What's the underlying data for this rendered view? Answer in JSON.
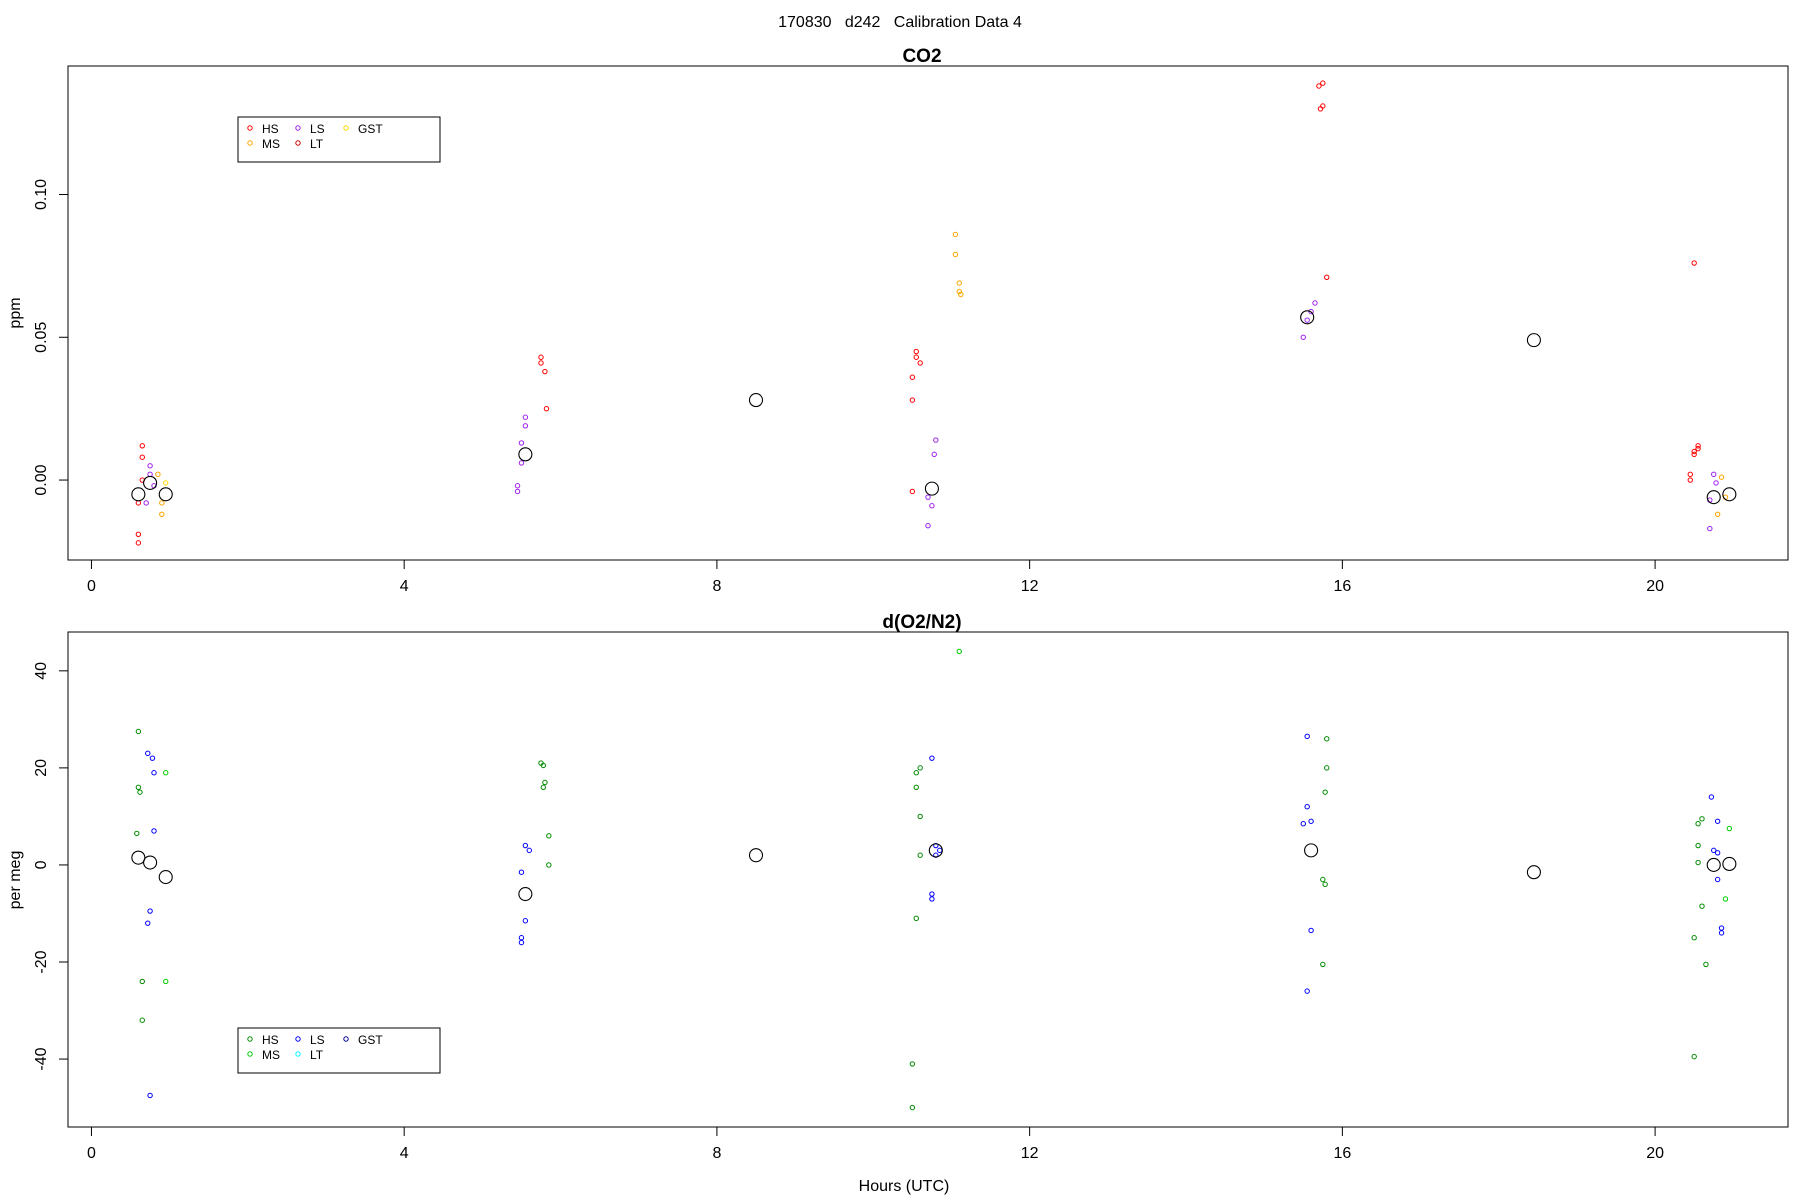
{
  "figure_title": "170830   d242   Calibration Data 4",
  "chart_data": [
    {
      "type": "scatter",
      "title": "CO2",
      "xlabel": "",
      "ylabel": "ppm",
      "xlim": [
        -0.3,
        21.7
      ],
      "ylim": [
        -0.028,
        0.145
      ],
      "xticks": [
        0,
        4,
        8,
        12,
        16,
        20
      ],
      "yticks": [
        0.0,
        0.05,
        0.1
      ],
      "ytick_labels": [
        "0.00",
        "0.05",
        "0.10"
      ],
      "legend": {
        "position": "top-left",
        "entries": [
          {
            "label": "HS",
            "color": "#ff0000"
          },
          {
            "label": "MS",
            "color": "#ffa500"
          },
          {
            "label": "LS",
            "color": "#a020f0"
          },
          {
            "label": "LT",
            "color": "#cd0000"
          },
          {
            "label": "GST",
            "color": "#ffd700"
          }
        ]
      },
      "series": [
        {
          "name": "HS",
          "color": "#ff0000",
          "points": [
            [
              0.6,
              -0.022
            ],
            [
              0.6,
              -0.019
            ],
            [
              0.6,
              -0.008
            ],
            [
              0.65,
              0.0
            ],
            [
              0.65,
              0.008
            ],
            [
              0.65,
              0.012
            ],
            [
              5.75,
              0.043
            ],
            [
              5.75,
              0.041
            ],
            [
              5.8,
              0.038
            ],
            [
              5.82,
              0.025
            ],
            [
              10.55,
              0.045
            ],
            [
              10.55,
              0.043
            ],
            [
              10.6,
              0.041
            ],
            [
              10.5,
              0.036
            ],
            [
              10.5,
              0.028
            ],
            [
              10.5,
              -0.004
            ],
            [
              15.7,
              0.138
            ],
            [
              15.75,
              0.139
            ],
            [
              15.75,
              0.131
            ],
            [
              15.72,
              0.13
            ],
            [
              15.8,
              0.071
            ],
            [
              20.5,
              0.076
            ],
            [
              20.55,
              0.012
            ],
            [
              20.55,
              0.011
            ],
            [
              20.5,
              0.01
            ],
            [
              20.5,
              0.009
            ],
            [
              20.45,
              0.002
            ],
            [
              20.45,
              0.0
            ]
          ]
        },
        {
          "name": "MS",
          "color": "#ffa500",
          "points": [
            [
              0.85,
              0.002
            ],
            [
              0.9,
              -0.008
            ],
            [
              0.9,
              -0.012
            ],
            [
              11.05,
              0.086
            ],
            [
              11.05,
              0.079
            ],
            [
              11.1,
              0.069
            ],
            [
              11.1,
              0.066
            ],
            [
              11.12,
              0.065
            ],
            [
              20.85,
              0.001
            ],
            [
              20.8,
              -0.012
            ],
            [
              20.9,
              -0.006
            ]
          ]
        },
        {
          "name": "LS",
          "color": "#a020f0",
          "points": [
            [
              0.7,
              -0.008
            ],
            [
              0.75,
              0.005
            ],
            [
              0.75,
              0.002
            ],
            [
              0.8,
              -0.002
            ],
            [
              5.55,
              0.022
            ],
            [
              5.55,
              0.019
            ],
            [
              5.5,
              0.013
            ],
            [
              5.5,
              0.006
            ],
            [
              5.45,
              -0.002
            ],
            [
              5.45,
              -0.004
            ],
            [
              10.8,
              0.014
            ],
            [
              10.78,
              0.009
            ],
            [
              10.75,
              -0.009
            ],
            [
              10.7,
              -0.006
            ],
            [
              10.7,
              -0.016
            ],
            [
              15.65,
              0.062
            ],
            [
              15.6,
              0.059
            ],
            [
              15.55,
              0.056
            ],
            [
              15.5,
              0.05
            ],
            [
              20.7,
              -0.017
            ],
            [
              20.75,
              0.002
            ],
            [
              20.78,
              -0.001
            ],
            [
              20.7,
              -0.007
            ]
          ]
        },
        {
          "name": "LT",
          "color": "#cd0000",
          "points": []
        },
        {
          "name": "GST",
          "color": "#ffd700",
          "points": [
            [
              0.95,
              -0.001
            ]
          ]
        },
        {
          "name": "",
          "color": "#000000",
          "marker": "large-circle",
          "points": [
            [
              0.6,
              -0.005
            ],
            [
              0.75,
              -0.001
            ],
            [
              0.95,
              -0.005
            ],
            [
              5.55,
              0.009
            ],
            [
              8.5,
              0.028
            ],
            [
              10.75,
              -0.003
            ],
            [
              15.55,
              0.057
            ],
            [
              18.45,
              0.049
            ],
            [
              20.75,
              -0.006
            ],
            [
              20.95,
              -0.005
            ]
          ]
        }
      ]
    },
    {
      "type": "scatter",
      "title": "d(O2/N2)",
      "xlabel": "Hours (UTC)",
      "ylabel": "per meg",
      "xlim": [
        -0.3,
        21.7
      ],
      "ylim": [
        -54,
        48
      ],
      "xticks": [
        0,
        4,
        8,
        12,
        16,
        20
      ],
      "yticks": [
        -40,
        -20,
        0,
        20,
        40
      ],
      "ytick_labels": [
        "-40",
        "-20",
        "0",
        "20",
        "40"
      ],
      "legend": {
        "position": "bottom-left",
        "entries": [
          {
            "label": "HS",
            "color": "#008b00"
          },
          {
            "label": "MS",
            "color": "#00cd00"
          },
          {
            "label": "LS",
            "color": "#0000ff"
          },
          {
            "label": "LT",
            "color": "#00ffff"
          },
          {
            "label": "GST",
            "color": "#00008b"
          }
        ]
      },
      "series": [
        {
          "name": "HS",
          "color": "#008b00",
          "points": [
            [
              0.6,
              27.5
            ],
            [
              0.6,
              16
            ],
            [
              0.62,
              15
            ],
            [
              0.58,
              6.5
            ],
            [
              0.65,
              -24
            ],
            [
              0.65,
              -32
            ],
            [
              5.75,
              21
            ],
            [
              5.78,
              20.5
            ],
            [
              5.8,
              17
            ],
            [
              5.78,
              16
            ],
            [
              5.85,
              6
            ],
            [
              5.85,
              0
            ],
            [
              10.6,
              20
            ],
            [
              10.55,
              19
            ],
            [
              10.55,
              16
            ],
            [
              10.6,
              10
            ],
            [
              10.6,
              2
            ],
            [
              10.55,
              -11
            ],
            [
              10.5,
              -41
            ],
            [
              10.5,
              -50
            ],
            [
              15.8,
              26
            ],
            [
              15.8,
              20
            ],
            [
              15.78,
              15
            ],
            [
              15.75,
              -3
            ],
            [
              15.78,
              -4
            ],
            [
              15.75,
              -20.5
            ],
            [
              20.6,
              9.5
            ],
            [
              20.55,
              8.5
            ],
            [
              20.55,
              4
            ],
            [
              20.55,
              0.5
            ],
            [
              20.6,
              -8.5
            ],
            [
              20.5,
              -15
            ],
            [
              20.65,
              -20.5
            ],
            [
              20.5,
              -39.5
            ]
          ]
        },
        {
          "name": "MS",
          "color": "#00cd00",
          "points": [
            [
              0.95,
              19
            ],
            [
              0.95,
              -24
            ],
            [
              11.1,
              44
            ],
            [
              20.95,
              7.5
            ],
            [
              20.9,
              -7
            ]
          ]
        },
        {
          "name": "LS",
          "color": "#0000ff",
          "points": [
            [
              0.72,
              23
            ],
            [
              0.78,
              22
            ],
            [
              0.8,
              19
            ],
            [
              0.8,
              7
            ],
            [
              0.75,
              -9.5
            ],
            [
              0.72,
              -12
            ],
            [
              0.75,
              -47.5
            ],
            [
              5.55,
              4
            ],
            [
              5.6,
              3
            ],
            [
              5.5,
              -1.5
            ],
            [
              5.55,
              -11.5
            ],
            [
              5.5,
              -15
            ],
            [
              5.5,
              -16
            ],
            [
              10.75,
              22
            ],
            [
              10.8,
              4
            ],
            [
              10.85,
              3
            ],
            [
              10.8,
              2
            ],
            [
              10.75,
              -6
            ],
            [
              10.75,
              -7
            ],
            [
              15.55,
              26.5
            ],
            [
              15.55,
              12
            ],
            [
              15.6,
              9
            ],
            [
              15.5,
              8.5
            ],
            [
              15.6,
              -13.5
            ],
            [
              15.55,
              -26
            ],
            [
              20.72,
              14
            ],
            [
              20.8,
              9
            ],
            [
              20.75,
              3
            ],
            [
              20.8,
              2.5
            ],
            [
              20.8,
              -3
            ],
            [
              20.85,
              -13
            ],
            [
              20.85,
              -14
            ]
          ]
        },
        {
          "name": "LT",
          "color": "#00ffff",
          "points": []
        },
        {
          "name": "GST",
          "color": "#00008b",
          "points": []
        },
        {
          "name": "",
          "color": "#000000",
          "marker": "large-circle",
          "points": [
            [
              0.6,
              1.5
            ],
            [
              0.75,
              0.5
            ],
            [
              0.95,
              -2.5
            ],
            [
              5.55,
              -6
            ],
            [
              8.5,
              2
            ],
            [
              10.8,
              3
            ],
            [
              15.6,
              3
            ],
            [
              18.45,
              -1.5
            ],
            [
              20.75,
              0
            ],
            [
              20.95,
              0.2
            ]
          ]
        }
      ]
    }
  ]
}
